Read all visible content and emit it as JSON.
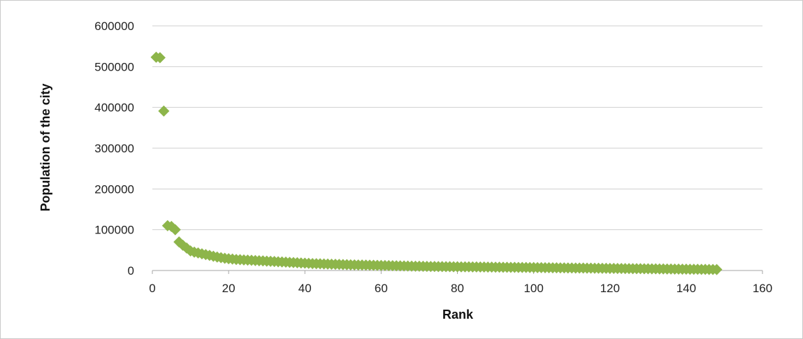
{
  "chart_data": {
    "type": "scatter",
    "xlabel": "Rank",
    "ylabel": "Population of the city",
    "xlim": [
      0,
      160
    ],
    "ylim": [
      0,
      600000
    ],
    "xticks": [
      0,
      20,
      40,
      60,
      80,
      100,
      120,
      140,
      160
    ],
    "yticks": [
      0,
      100000,
      200000,
      300000,
      400000,
      500000,
      600000
    ],
    "grid": "horizontal",
    "legend": "none",
    "marker": "diamond",
    "color": "#8db54a",
    "series": [
      {
        "points": [
          [
            1,
            523000
          ],
          [
            2,
            522000
          ],
          [
            3,
            391000
          ],
          [
            4,
            110000
          ],
          [
            5,
            108000
          ],
          [
            6,
            100000
          ],
          [
            7,
            70000
          ],
          [
            8,
            62000
          ],
          [
            9,
            55000
          ],
          [
            10,
            48000
          ],
          [
            11,
            45000
          ],
          [
            12,
            43000
          ],
          [
            13,
            41000
          ],
          [
            14,
            39000
          ],
          [
            15,
            37000
          ],
          [
            16,
            35000
          ],
          [
            17,
            33000
          ],
          [
            18,
            31500
          ],
          [
            19,
            30000
          ],
          [
            20,
            29000
          ],
          [
            21,
            28000
          ],
          [
            22,
            27000
          ],
          [
            23,
            26500
          ],
          [
            24,
            26000
          ],
          [
            25,
            25500
          ],
          [
            26,
            25000
          ],
          [
            27,
            24500
          ],
          [
            28,
            24000
          ],
          [
            29,
            23500
          ],
          [
            30,
            23000
          ],
          [
            31,
            22500
          ],
          [
            32,
            22000
          ],
          [
            33,
            21500
          ],
          [
            34,
            21000
          ],
          [
            35,
            20500
          ],
          [
            36,
            20000
          ],
          [
            37,
            19500
          ],
          [
            38,
            19000
          ],
          [
            39,
            18500
          ],
          [
            40,
            18000
          ],
          [
            41,
            17500
          ],
          [
            42,
            17000
          ],
          [
            43,
            16700
          ],
          [
            44,
            16400
          ],
          [
            45,
            16100
          ],
          [
            46,
            15800
          ],
          [
            47,
            15500
          ],
          [
            48,
            15200
          ],
          [
            49,
            14900
          ],
          [
            50,
            14600
          ],
          [
            51,
            14300
          ],
          [
            52,
            14000
          ],
          [
            53,
            13800
          ],
          [
            54,
            13600
          ],
          [
            55,
            13400
          ],
          [
            56,
            13200
          ],
          [
            57,
            13000
          ],
          [
            58,
            12800
          ],
          [
            59,
            12600
          ],
          [
            60,
            12400
          ],
          [
            61,
            12200
          ],
          [
            62,
            12000
          ],
          [
            63,
            11800
          ],
          [
            64,
            11600
          ],
          [
            65,
            11400
          ],
          [
            66,
            11200
          ],
          [
            67,
            11000
          ],
          [
            68,
            10800
          ],
          [
            69,
            10600
          ],
          [
            70,
            10400
          ],
          [
            71,
            10200
          ],
          [
            72,
            10000
          ],
          [
            73,
            9900
          ],
          [
            74,
            9800
          ],
          [
            75,
            9700
          ],
          [
            76,
            9600
          ],
          [
            77,
            9500
          ],
          [
            78,
            9400
          ],
          [
            79,
            9300
          ],
          [
            80,
            9200
          ],
          [
            81,
            9100
          ],
          [
            82,
            9000
          ],
          [
            83,
            8900
          ],
          [
            84,
            8800
          ],
          [
            85,
            8700
          ],
          [
            86,
            8600
          ],
          [
            87,
            8500
          ],
          [
            88,
            8400
          ],
          [
            89,
            8300
          ],
          [
            90,
            8200
          ],
          [
            91,
            8100
          ],
          [
            92,
            8000
          ],
          [
            93,
            7900
          ],
          [
            94,
            7800
          ],
          [
            95,
            7700
          ],
          [
            96,
            7600
          ],
          [
            97,
            7500
          ],
          [
            98,
            7400
          ],
          [
            99,
            7300
          ],
          [
            100,
            7200
          ],
          [
            101,
            7100
          ],
          [
            102,
            7000
          ],
          [
            103,
            6900
          ],
          [
            104,
            6800
          ],
          [
            105,
            6700
          ],
          [
            106,
            6600
          ],
          [
            107,
            6500
          ],
          [
            108,
            6400
          ],
          [
            109,
            6300
          ],
          [
            110,
            6200
          ],
          [
            111,
            6100
          ],
          [
            112,
            6000
          ],
          [
            113,
            5900
          ],
          [
            114,
            5800
          ],
          [
            115,
            5700
          ],
          [
            116,
            5600
          ],
          [
            117,
            5500
          ],
          [
            118,
            5400
          ],
          [
            119,
            5300
          ],
          [
            120,
            5200
          ],
          [
            121,
            5100
          ],
          [
            122,
            5000
          ],
          [
            123,
            4900
          ],
          [
            124,
            4800
          ],
          [
            125,
            4700
          ],
          [
            126,
            4600
          ],
          [
            127,
            4500
          ],
          [
            128,
            4400
          ],
          [
            129,
            4300
          ],
          [
            130,
            4200
          ],
          [
            131,
            4100
          ],
          [
            132,
            4000
          ],
          [
            133,
            3900
          ],
          [
            134,
            3800
          ],
          [
            135,
            3700
          ],
          [
            136,
            3600
          ],
          [
            137,
            3500
          ],
          [
            138,
            3400
          ],
          [
            139,
            3300
          ],
          [
            140,
            3200
          ],
          [
            141,
            3100
          ],
          [
            142,
            3000
          ],
          [
            143,
            2900
          ],
          [
            144,
            2800
          ],
          [
            145,
            2700
          ],
          [
            146,
            2600
          ],
          [
            147,
            2500
          ],
          [
            148,
            2400
          ]
        ]
      }
    ]
  }
}
